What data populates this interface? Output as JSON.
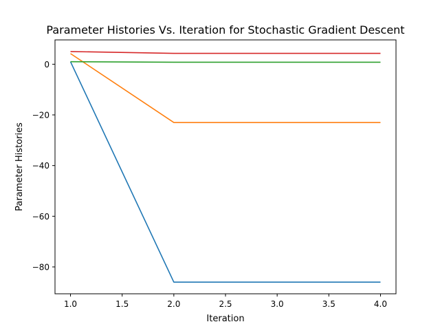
{
  "chart_data": {
    "type": "line",
    "title": "Parameter Histories Vs. Iteration for Stochastic Gradient Descent",
    "xlabel": "Iteration",
    "ylabel": "Parameter Histories",
    "xlim": [
      0.85,
      4.15
    ],
    "ylim": [
      -90.6,
      9.6
    ],
    "grid": false,
    "x": [
      1,
      2,
      3,
      4
    ],
    "xticks": [
      1.0,
      1.5,
      2.0,
      2.5,
      3.0,
      3.5,
      4.0
    ],
    "xtick_labels": [
      "1.0",
      "1.5",
      "2.0",
      "2.5",
      "3.0",
      "3.5",
      "4.0"
    ],
    "yticks": [
      0,
      -20,
      -40,
      -60,
      -80
    ],
    "ytick_labels": [
      "0",
      "−20",
      "−40",
      "−60",
      "−80"
    ],
    "series": [
      {
        "values": [
          1.0,
          -86.0,
          -86.0,
          -86.0
        ],
        "color": "#1f77b4"
      },
      {
        "values": [
          4.2,
          -23.0,
          -23.0,
          -23.0
        ],
        "color": "#ff7f0e"
      },
      {
        "values": [
          1.0,
          0.8,
          0.8,
          0.8
        ],
        "color": "#2ca02c"
      },
      {
        "values": [
          5.0,
          4.3,
          4.3,
          4.3
        ],
        "color": "#d62728"
      }
    ]
  }
}
